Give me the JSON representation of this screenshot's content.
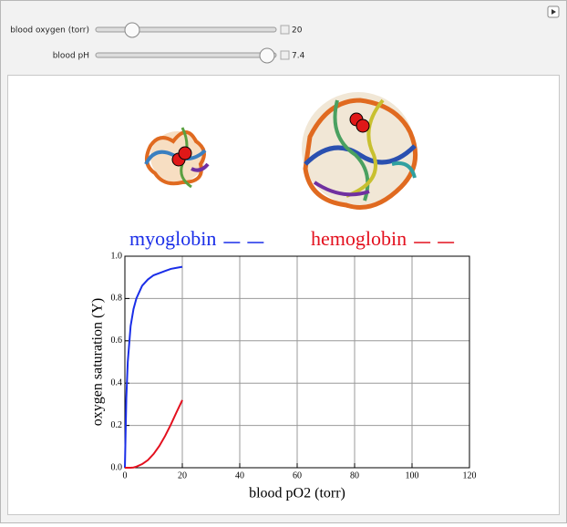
{
  "controls": [
    {
      "label": "blood oxygen (torr)",
      "value": 20
    },
    {
      "label": "blood pH",
      "value": 7.4
    }
  ],
  "chart_data": {
    "type": "line",
    "x": [
      0,
      0.5,
      1,
      2,
      3,
      4,
      6,
      8,
      10,
      12,
      14,
      16,
      18,
      20
    ],
    "series": [
      {
        "name": "myoglobin",
        "color": "#1a2ee8",
        "values": [
          0,
          0.33,
          0.5,
          0.67,
          0.75,
          0.8,
          0.86,
          0.89,
          0.91,
          0.92,
          0.93,
          0.94,
          0.945,
          0.95
        ]
      },
      {
        "name": "hemoglobin",
        "color": "#e3101e",
        "values": [
          0,
          0,
          0,
          0,
          0.001,
          0.005,
          0.017,
          0.036,
          0.065,
          0.103,
          0.15,
          0.204,
          0.263,
          0.32
        ]
      }
    ],
    "xlabel": "blood pO2 (torr)",
    "ylabel": "oxygen saturation (Y)",
    "xlim": [
      0,
      120
    ],
    "xticks": [
      0,
      20,
      40,
      60,
      80,
      100,
      120
    ],
    "ylim": [
      0,
      1
    ],
    "yticks": [
      {
        "value": 0,
        "label": "0.0"
      },
      0.2,
      0.4,
      0.6,
      0.8,
      {
        "value": 1,
        "label": "1.0"
      }
    ],
    "grid": true
  }
}
